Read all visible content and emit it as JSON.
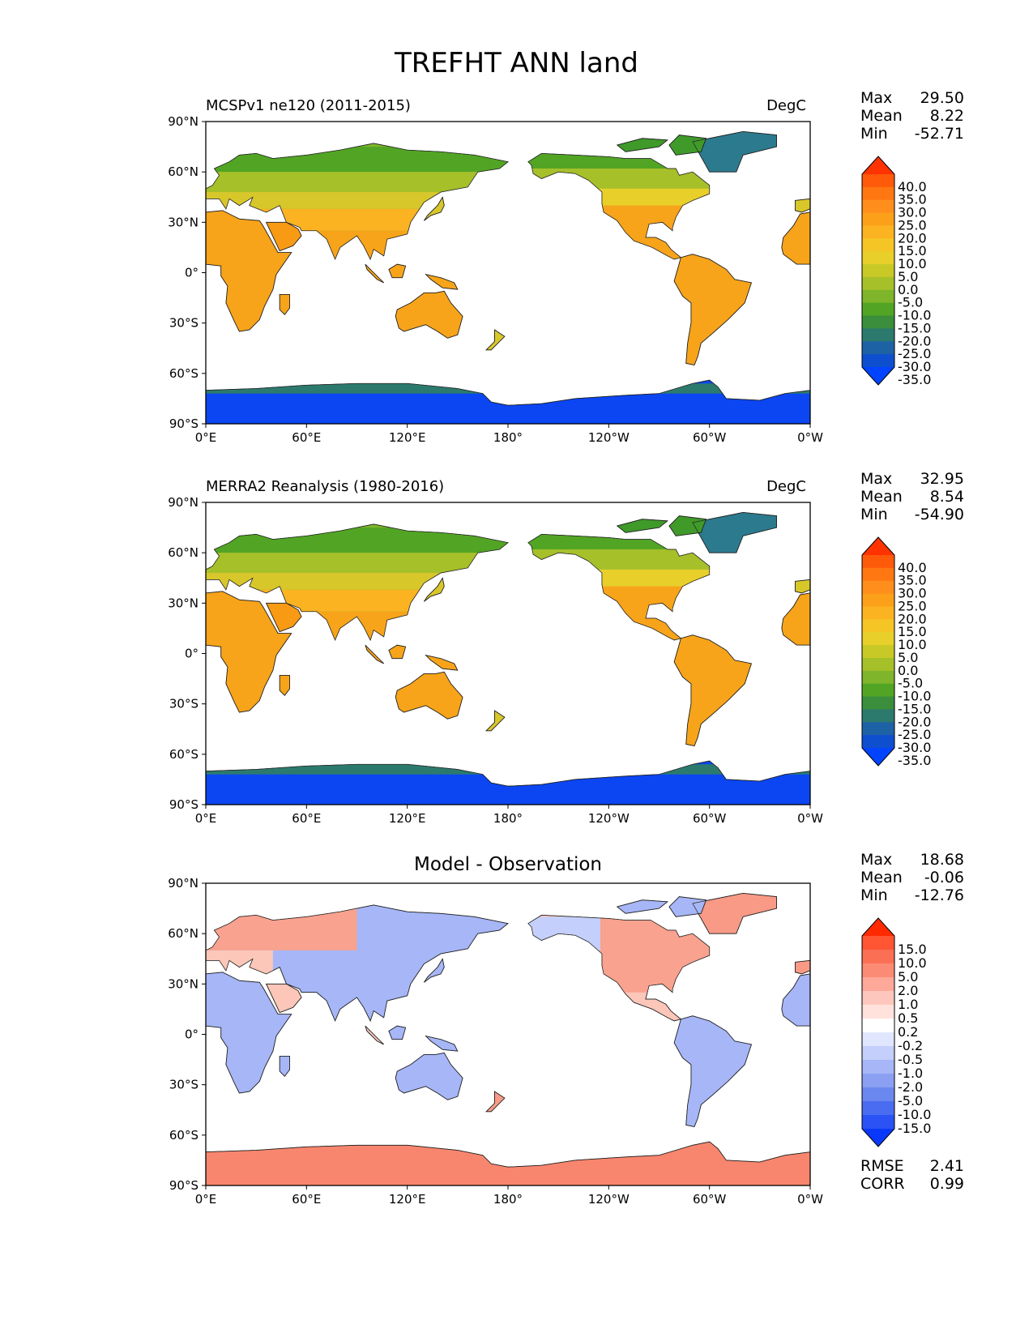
{
  "title": "TREFHT ANN land",
  "x_ticks": [
    "0°E",
    "60°E",
    "120°E",
    "180°",
    "120°W",
    "60°W",
    "0°W"
  ],
  "y_ticks": [
    "90°N",
    "60°N",
    "30°N",
    "0°",
    "30°S",
    "60°S",
    "90°S"
  ],
  "panels": [
    {
      "left_title": "MCSPv1 ne120 (2011-2015)",
      "right_title": "DegC",
      "center_title": "",
      "stats": [
        {
          "label": "Max",
          "value": "29.50"
        },
        {
          "label": "Mean",
          "value": "8.22"
        },
        {
          "label": "Min",
          "value": "-52.71"
        }
      ],
      "colorbar": {
        "labels": [
          "40.0",
          "35.0",
          "30.0",
          "25.0",
          "20.0",
          "15.0",
          "10.0",
          "5.0",
          "0.0",
          "-5.0",
          "-10.0",
          "-15.0",
          "-20.0",
          "-25.0",
          "-30.0",
          "-35.0"
        ],
        "colors": [
          "#ff3300",
          "#ff5a0a",
          "#ff7711",
          "#ff8e1c",
          "#fca01a",
          "#fbb322",
          "#f5c526",
          "#e8cf2a",
          "#c8c927",
          "#a6c02a",
          "#7eb52a",
          "#52a524",
          "#3a8e3c",
          "#2c7a6e",
          "#1e62a6",
          "#0e4fd0",
          "#0044ff"
        ]
      }
    },
    {
      "left_title": "MERRA2 Reanalysis (1980-2016)",
      "right_title": "DegC",
      "center_title": "",
      "stats": [
        {
          "label": "Max",
          "value": "32.95"
        },
        {
          "label": "Mean",
          "value": "8.54"
        },
        {
          "label": "Min",
          "value": "-54.90"
        }
      ],
      "colorbar": {
        "labels": [
          "40.0",
          "35.0",
          "30.0",
          "25.0",
          "20.0",
          "15.0",
          "10.0",
          "5.0",
          "0.0",
          "-5.0",
          "-10.0",
          "-15.0",
          "-20.0",
          "-25.0",
          "-30.0",
          "-35.0"
        ],
        "colors": [
          "#ff3300",
          "#ff5a0a",
          "#ff7711",
          "#ff8e1c",
          "#fca01a",
          "#fbb322",
          "#f5c526",
          "#e8cf2a",
          "#c8c927",
          "#a6c02a",
          "#7eb52a",
          "#52a524",
          "#3a8e3c",
          "#2c7a6e",
          "#1e62a6",
          "#0e4fd0",
          "#0044ff"
        ]
      }
    },
    {
      "left_title": "",
      "right_title": "",
      "center_title": "Model - Observation",
      "stats": [
        {
          "label": "Max",
          "value": "18.68"
        },
        {
          "label": "Mean",
          "value": "-0.06"
        },
        {
          "label": "Min",
          "value": "-12.76"
        }
      ],
      "colorbar": {
        "labels": [
          "15.0",
          "10.0",
          "5.0",
          "2.0",
          "1.0",
          "0.5",
          "0.2",
          "-0.2",
          "-0.5",
          "-1.0",
          "-2.0",
          "-5.0",
          "-10.0",
          "-15.0"
        ],
        "colors": [
          "#ff2a00",
          "#ff5533",
          "#fb7055",
          "#fb8b74",
          "#fda898",
          "#fec7bd",
          "#ffe2dc",
          "#ffffff",
          "#e0e6fd",
          "#c4cffb",
          "#a6b6f7",
          "#8ba0f3",
          "#6b87f0",
          "#4a6cf0",
          "#2a52f5",
          "#0a38fb"
        ]
      },
      "bottom_stats": [
        {
          "label": "RMSE",
          "value": "2.41"
        },
        {
          "label": "CORR",
          "value": "0.99"
        }
      ]
    }
  ]
}
